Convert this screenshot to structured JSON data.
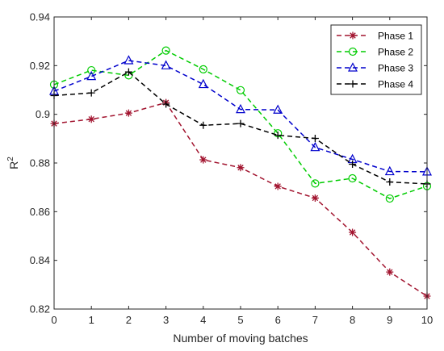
{
  "chart_data": {
    "type": "line",
    "xlabel": "Number of moving batches",
    "ylabel": "R",
    "ylabel_superscript": "2",
    "xlim": [
      0,
      10
    ],
    "ylim": [
      0.82,
      0.94
    ],
    "xticks": [
      "0",
      "1",
      "2",
      "3",
      "4",
      "5",
      "6",
      "7",
      "8",
      "9",
      "10"
    ],
    "yticks": [
      "0.82",
      "0.84",
      "0.86",
      "0.88",
      "0.9",
      "0.92",
      "0.94"
    ],
    "grid": false,
    "legend_position": "top-right",
    "x": [
      0,
      1,
      2,
      3,
      4,
      5,
      6,
      7,
      8,
      9,
      10
    ],
    "series": [
      {
        "name": "Phase 1",
        "color": "#A2142F",
        "marker": "asterisk",
        "values": [
          0.8962,
          0.898,
          0.9005,
          0.9048,
          0.8813,
          0.8781,
          0.8704,
          0.8656,
          0.8515,
          0.8352,
          0.8253
        ]
      },
      {
        "name": "Phase 2",
        "color": "#00CC00",
        "marker": "circle",
        "values": [
          0.9122,
          0.9181,
          0.916,
          0.9262,
          0.9185,
          0.9099,
          0.8922,
          0.8716,
          0.8737,
          0.8654,
          0.8705
        ]
      },
      {
        "name": "Phase 3",
        "color": "#0000CC",
        "marker": "triangle",
        "values": [
          0.9095,
          0.9156,
          0.9221,
          0.92,
          0.9123,
          0.902,
          0.9018,
          0.8864,
          0.8815,
          0.8765,
          0.8764
        ]
      },
      {
        "name": "Phase 4",
        "color": "#000000",
        "marker": "plus",
        "values": [
          0.9077,
          0.9088,
          0.9174,
          0.9042,
          0.8955,
          0.8962,
          0.8914,
          0.8901,
          0.8795,
          0.8722,
          0.8714
        ]
      }
    ]
  }
}
